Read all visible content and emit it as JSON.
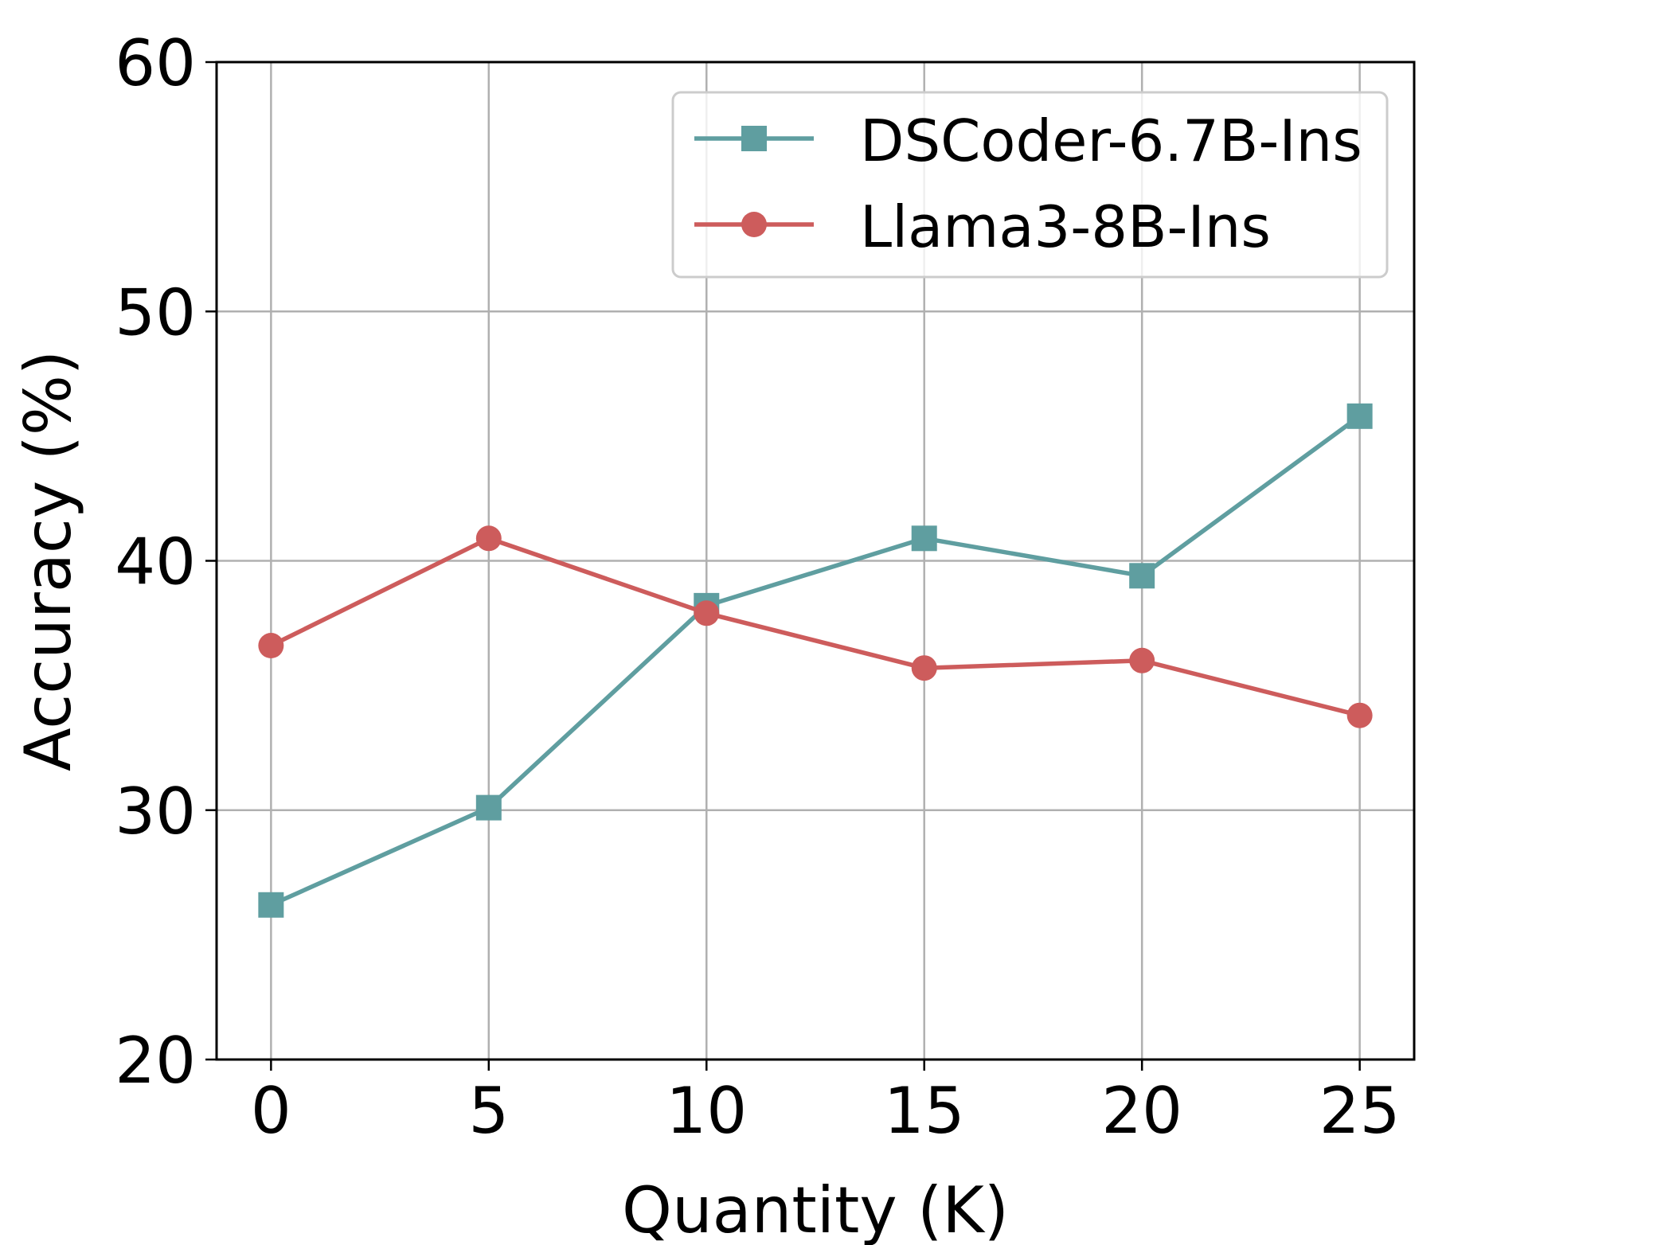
{
  "chart_data": {
    "type": "line",
    "title": "",
    "xlabel": "Quantity (K)",
    "ylabel": "Accuracy (%)",
    "x": [
      0,
      5,
      10,
      15,
      20,
      25
    ],
    "xticks": [
      0,
      5,
      10,
      15,
      20,
      25
    ],
    "yticks": [
      20,
      30,
      40,
      50,
      60
    ],
    "xlim": [
      -1.25,
      26.25
    ],
    "ylim": [
      20,
      60
    ],
    "grid": true,
    "legend_position": "upper right",
    "series": [
      {
        "name": "DSCoder-6.7B-Ins",
        "marker": "square",
        "color": "#5f9ea0",
        "values": [
          26.2,
          30.1,
          38.2,
          40.9,
          39.4,
          45.8
        ]
      },
      {
        "name": "Llama3-8B-Ins",
        "marker": "circle",
        "color": "#cd5c5c",
        "values": [
          36.6,
          40.9,
          37.9,
          35.7,
          36.0,
          33.8
        ]
      }
    ]
  }
}
